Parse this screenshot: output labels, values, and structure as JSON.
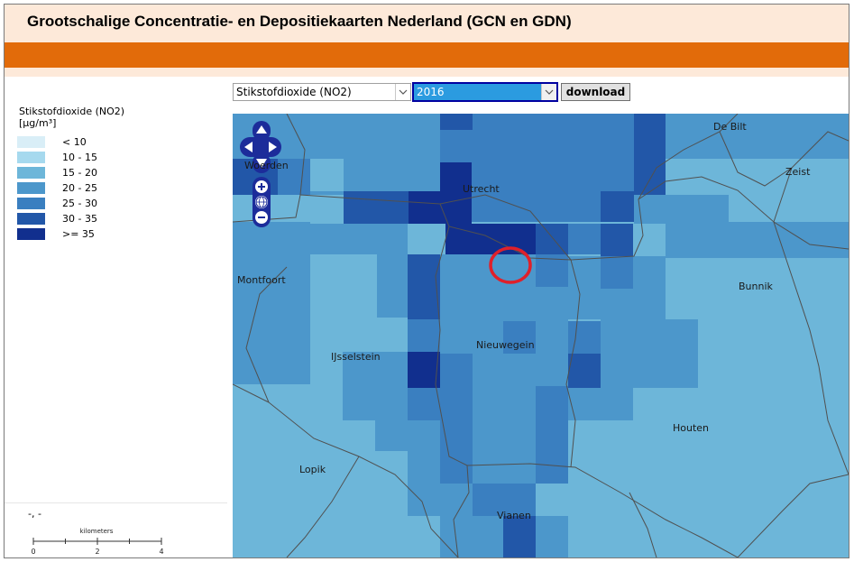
{
  "header": {
    "title": "Grootschalige Concentratie- en Depositiekaarten Nederland (GCN en GDN)"
  },
  "colors": {
    "header_bg": "#fde9d9",
    "orange_bar": "#e26b0a",
    "selected_bg": "#2b9be0",
    "highlight_circle": "#e0202a"
  },
  "legend": {
    "title_line1": "Stikstofdioxide (NO2)",
    "title_line2": "[µg/m³]",
    "items": [
      {
        "label": "< 10",
        "color": "#d9eef7"
      },
      {
        "label": "10 - 15",
        "color": "#a6d9ee"
      },
      {
        "label": "15 - 20",
        "color": "#6db6d9"
      },
      {
        "label": "20 - 25",
        "color": "#4c97cb"
      },
      {
        "label": "25 - 30",
        "color": "#3a7fc0"
      },
      {
        "label": "30 - 35",
        "color": "#2257a8"
      },
      {
        "label": ">= 35",
        "color": "#112f8e"
      }
    ]
  },
  "coordinates": "-, -",
  "scale": {
    "unit": "kilometers",
    "ticks": [
      "0",
      "2",
      "4"
    ]
  },
  "controls": {
    "substance": "Stikstofdioxide (NO2)",
    "year": "2016",
    "download_label": "download"
  },
  "map": {
    "places": [
      "De Bilt",
      "Woerden",
      "Utrecht",
      "Zeist",
      "Montfoort",
      "Bunnik",
      "Nieuwegein",
      "IJsselstein",
      "Houten",
      "Lopik",
      "Vianen"
    ],
    "nav_icons": [
      "pan-up-icon",
      "pan-left-icon",
      "pan-right-icon",
      "pan-down-icon",
      "zoom-in-icon",
      "zoom-world-icon",
      "zoom-out-icon"
    ]
  }
}
